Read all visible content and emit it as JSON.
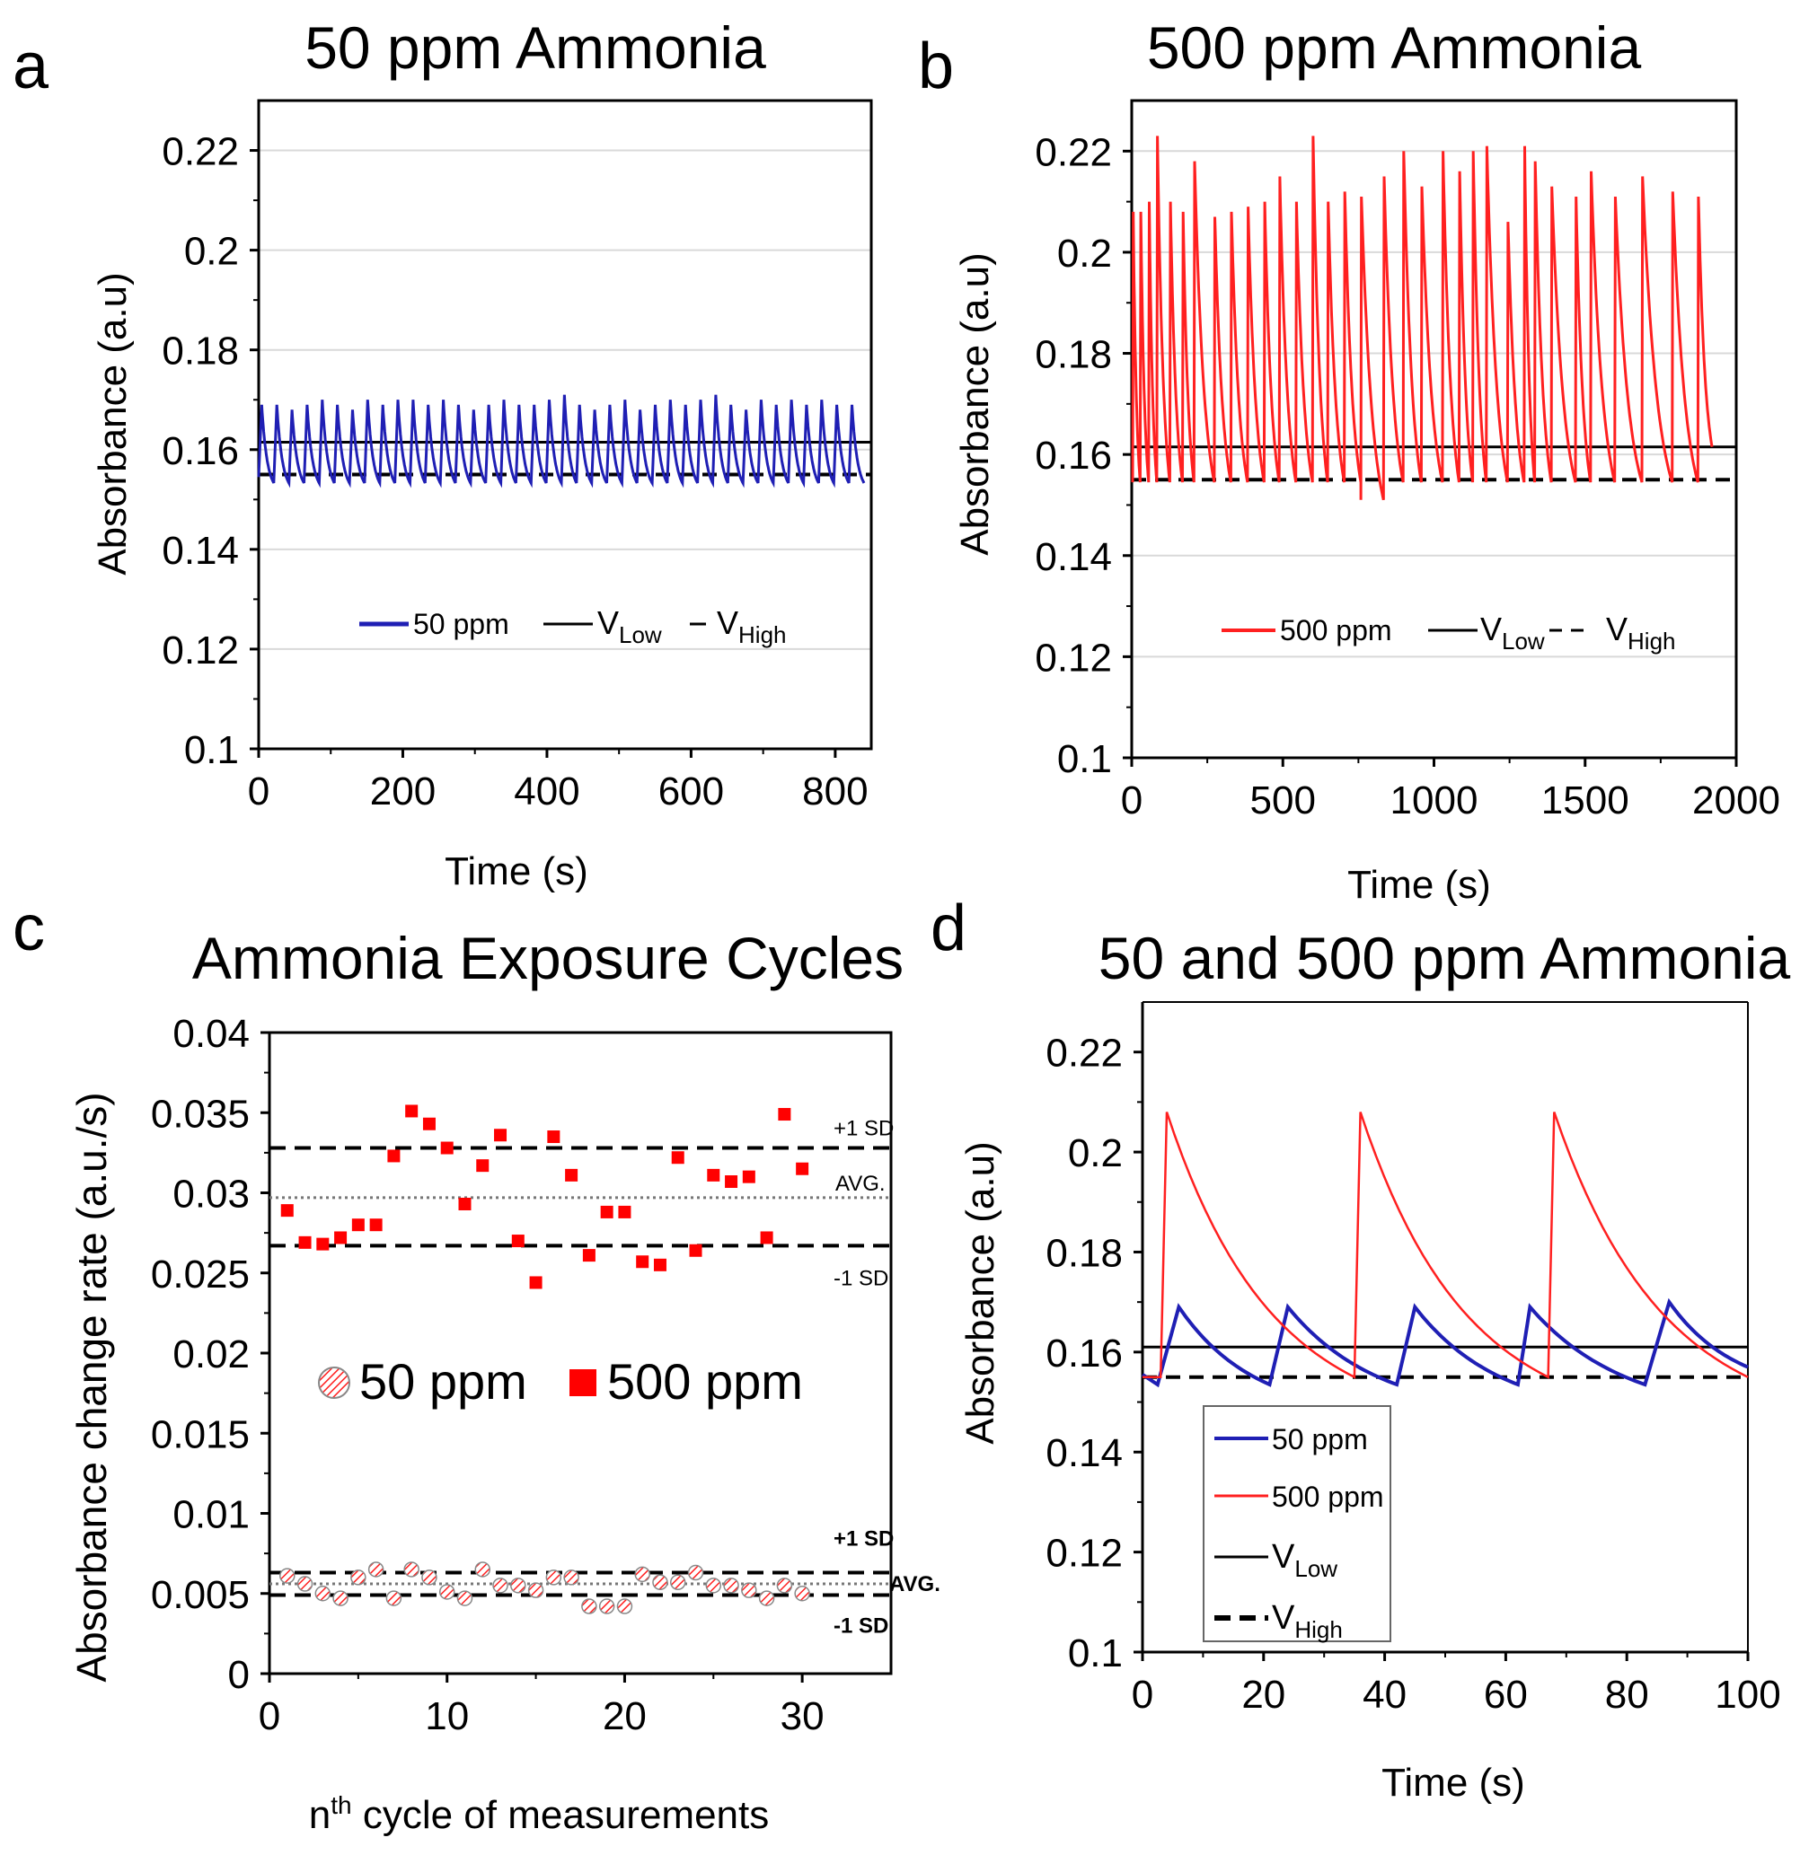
{
  "figure": {
    "panels": [
      "a",
      "b",
      "c",
      "d"
    ]
  },
  "chart_data": [
    {
      "panel": "a",
      "type": "line",
      "title": "50 ppm Ammonia",
      "xlabel": "Time (s)",
      "ylabel": "Absorbance (a.u)",
      "xlim": [
        0,
        850
      ],
      "ylim": [
        0.1,
        0.23
      ],
      "xticks": [
        "0",
        "200",
        "400",
        "600",
        "800"
      ],
      "xtick_values": [
        0,
        200,
        400,
        600,
        800
      ],
      "yticks": [
        "0.1",
        "0.12",
        "0.14",
        "0.16",
        "0.18",
        "0.2",
        "0.22"
      ],
      "ytick_values": [
        0.1,
        0.12,
        0.14,
        0.16,
        0.18,
        0.2,
        0.22
      ],
      "grid": "horizontal",
      "series": [
        {
          "name": "50 ppm",
          "color": "#1f1fb4",
          "kind": "sawtooth",
          "x_start": 0,
          "x_end": 840,
          "period": 21,
          "baseline": 0.1545,
          "peaks": [
            0.169,
            0.169,
            0.168,
            0.169,
            0.17,
            0.169,
            0.168,
            0.17,
            0.169,
            0.17,
            0.17,
            0.169,
            0.17,
            0.169,
            0.168,
            0.169,
            0.17,
            0.169,
            0.169,
            0.17,
            0.171,
            0.169,
            0.168,
            0.169,
            0.17,
            0.168,
            0.169,
            0.17,
            0.169,
            0.17,
            0.171,
            0.169,
            0.168,
            0.17,
            0.169,
            0.17,
            0.169,
            0.17,
            0.169,
            0.169
          ]
        }
      ],
      "reference_lines": [
        {
          "name": "V_Low",
          "value": 0.1615,
          "style": "solid"
        },
        {
          "name": "V_High",
          "value": 0.155,
          "style": "dashed"
        }
      ],
      "legend": [
        {
          "label": "50 ppm",
          "sub": ""
        },
        {
          "label": "V",
          "sub": "Low"
        },
        {
          "label": "V",
          "sub": "High"
        }
      ],
      "legend_position": "lower-center"
    },
    {
      "panel": "b",
      "type": "line",
      "title": "500 ppm Ammonia",
      "xlabel": "Time (s)",
      "ylabel": "Absorbance (a.u)",
      "xlim": [
        0,
        2000
      ],
      "ylim": [
        0.1,
        0.23
      ],
      "xticks": [
        "0",
        "500",
        "1000",
        "1500",
        "2000"
      ],
      "xtick_values": [
        0,
        500,
        1000,
        1500,
        2000
      ],
      "yticks": [
        "0.1",
        "0.12",
        "0.14",
        "0.16",
        "0.18",
        "0.2",
        "0.22"
      ],
      "ytick_values": [
        0.1,
        0.12,
        0.14,
        0.16,
        0.18,
        0.2,
        0.22
      ],
      "grid": "horizontal",
      "series": [
        {
          "name": "500 ppm",
          "color": "#ff2020",
          "kind": "sawtooth",
          "baseline": 0.1545,
          "peak_times": [
            5,
            30,
            58,
            85,
            128,
            170,
            208,
            275,
            330,
            385,
            440,
            490,
            545,
            600,
            650,
            705,
            760,
            835,
            900,
            960,
            1030,
            1085,
            1130,
            1175,
            1245,
            1300,
            1335,
            1390,
            1470,
            1520,
            1600,
            1690,
            1790,
            1875
          ],
          "peaks": [
            0.208,
            0.208,
            0.21,
            0.223,
            0.21,
            0.208,
            0.218,
            0.207,
            0.208,
            0.209,
            0.21,
            0.215,
            0.21,
            0.223,
            0.21,
            0.212,
            0.211,
            0.215,
            0.22,
            0.213,
            0.22,
            0.216,
            0.22,
            0.221,
            0.206,
            0.221,
            0.218,
            0.213,
            0.211,
            0.216,
            0.211,
            0.215,
            0.212,
            0.211
          ],
          "end_time": 1920,
          "dip": {
            "time": 770,
            "value": 0.151
          }
        }
      ],
      "reference_lines": [
        {
          "name": "V_Low",
          "value": 0.1615,
          "style": "solid"
        },
        {
          "name": "V_High",
          "value": 0.155,
          "style": "dashed"
        }
      ],
      "legend": [
        {
          "label": "500 ppm",
          "sub": ""
        },
        {
          "label": "V",
          "sub": "Low"
        },
        {
          "label": "V",
          "sub": "High"
        }
      ],
      "legend_position": "lower-center"
    },
    {
      "panel": "c",
      "type": "scatter",
      "title": "Ammonia Exposure Cycles",
      "xlabel": "n",
      "xlabel_sup": "th",
      "xlabel_rest": " cycle of measurements",
      "ylabel": "Absorbance change rate (a.u./s)",
      "xlim": [
        0,
        35
      ],
      "ylim": [
        0,
        0.04
      ],
      "xticks": [
        "0",
        "10",
        "20",
        "30"
      ],
      "xtick_values": [
        0,
        10,
        20,
        30
      ],
      "yticks": [
        "0",
        "0.005",
        "0.01",
        "0.015",
        "0.02",
        "0.025",
        "0.03",
        "0.035",
        "0.04"
      ],
      "ytick_values": [
        0,
        0.005,
        0.01,
        0.015,
        0.02,
        0.025,
        0.03,
        0.035,
        0.04
      ],
      "series": [
        {
          "name": "500 ppm",
          "marker": "square",
          "color": "#ff0000",
          "x": [
            1,
            2,
            3,
            4,
            5,
            6,
            7,
            8,
            9,
            10,
            11,
            12,
            13,
            14,
            15,
            16,
            17,
            18,
            19,
            20,
            21,
            22,
            23,
            24,
            25,
            26,
            27,
            28,
            29,
            30
          ],
          "y": [
            0.0289,
            0.0269,
            0.0268,
            0.0272,
            0.028,
            0.028,
            0.0323,
            0.0351,
            0.0343,
            0.0328,
            0.0293,
            0.0317,
            0.0336,
            0.027,
            0.0244,
            0.0335,
            0.0311,
            0.0261,
            0.0288,
            0.0288,
            0.0257,
            0.0255,
            0.0322,
            0.0264,
            0.0311,
            0.0307,
            0.031,
            0.0272,
            0.0349,
            0.0315
          ]
        },
        {
          "name": "50 ppm",
          "marker": "hatched-circle",
          "color": "#ff0000",
          "x": [
            1,
            2,
            3,
            4,
            5,
            6,
            7,
            8,
            9,
            10,
            11,
            12,
            13,
            14,
            15,
            16,
            17,
            18,
            19,
            20,
            21,
            22,
            23,
            24,
            25,
            26,
            27,
            28,
            29,
            30
          ],
          "y": [
            0.0061,
            0.0056,
            0.005,
            0.0047,
            0.006,
            0.0065,
            0.0047,
            0.0065,
            0.006,
            0.0051,
            0.0047,
            0.0065,
            0.0055,
            0.0055,
            0.0052,
            0.006,
            0.006,
            0.0042,
            0.0042,
            0.0042,
            0.0062,
            0.0057,
            0.0057,
            0.0063,
            0.0055,
            0.0055,
            0.0052,
            0.0047,
            0.0055,
            0.005
          ]
        }
      ],
      "reference_lines": [
        {
          "group": "500 ppm",
          "label": "+1 SD",
          "value": 0.0328,
          "style": "dashed"
        },
        {
          "group": "500 ppm",
          "label": "AVG.",
          "value": 0.0297,
          "style": "dotted"
        },
        {
          "group": "500 ppm",
          "label": "-1 SD",
          "value": 0.0267,
          "style": "dashed"
        },
        {
          "group": "50 ppm",
          "label": "+1 SD",
          "value": 0.0063,
          "style": "dashed"
        },
        {
          "group": "50 ppm",
          "label": "AVG.",
          "value": 0.0056,
          "style": "dotted"
        },
        {
          "group": "50 ppm",
          "label": "-1 SD",
          "value": 0.0049,
          "style": "dashed"
        }
      ],
      "legend": [
        {
          "label": "50 ppm"
        },
        {
          "label": "500 ppm"
        }
      ],
      "legend_position": "center"
    },
    {
      "panel": "d",
      "type": "line",
      "title": "50 and 500 ppm Ammonia",
      "xlabel": "Time (s)",
      "ylabel": "Absorbance (a.u)",
      "xlim": [
        0,
        100
      ],
      "ylim": [
        0.1,
        0.23
      ],
      "xticks": [
        "0",
        "20",
        "40",
        "60",
        "80",
        "100"
      ],
      "xtick_values": [
        0,
        20,
        40,
        60,
        80,
        100
      ],
      "yticks": [
        "0.1",
        "0.12",
        "0.14",
        "0.16",
        "0.18",
        "0.2",
        "0.22"
      ],
      "ytick_values": [
        0.1,
        0.12,
        0.14,
        0.16,
        0.18,
        0.2,
        0.22
      ],
      "series": [
        {
          "name": "50 ppm",
          "color": "#1f1fb4",
          "kind": "sawtooth",
          "baseline": 0.1535,
          "rise_start": [
            2.5,
            21,
            42,
            62,
            83
          ],
          "peak_times": [
            6,
            24,
            45,
            64,
            87
          ],
          "peaks": [
            0.169,
            0.169,
            0.169,
            0.169,
            0.17
          ],
          "end_time": 100,
          "end_value": 0.157
        },
        {
          "name": "500 ppm",
          "color": "#ff2020",
          "kind": "sawtooth",
          "baseline": 0.155,
          "rise_start": [
            3,
            35,
            67
          ],
          "peak_times": [
            4,
            36,
            68
          ],
          "peaks": [
            0.208,
            0.208,
            0.208
          ],
          "end_time": 100,
          "end_value": 0.155
        }
      ],
      "reference_lines": [
        {
          "name": "V_Low",
          "value": 0.161,
          "style": "solid"
        },
        {
          "name": "V_High",
          "value": 0.155,
          "style": "dashed"
        }
      ],
      "legend": [
        {
          "label": "50 ppm",
          "sub": ""
        },
        {
          "label": "500 ppm",
          "sub": ""
        },
        {
          "label": "V",
          "sub": "Low"
        },
        {
          "label": "V",
          "sub": "High"
        }
      ],
      "legend_position": "lower-left"
    }
  ]
}
